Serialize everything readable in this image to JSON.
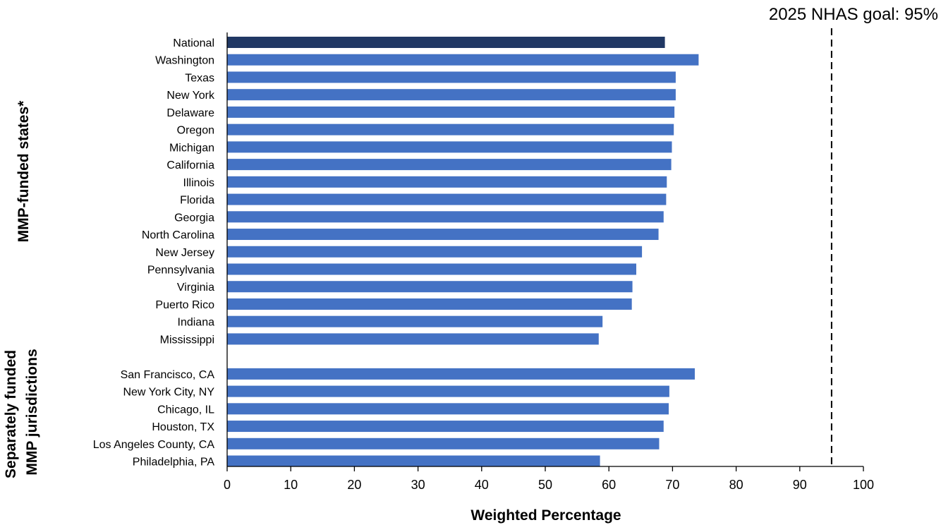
{
  "chart_data": {
    "type": "bar",
    "orientation": "horizontal",
    "xlabel": "Weighted Percentage",
    "xlim": [
      0,
      100
    ],
    "xticks": [
      0,
      10,
      20,
      30,
      40,
      50,
      60,
      70,
      80,
      90,
      100
    ],
    "grid": false,
    "colors": {
      "national": "#203864",
      "bar": "#4472C4",
      "axis": "#000000"
    },
    "reference_line": {
      "value": 95,
      "label": "2025 NHAS goal: 95%",
      "style": "dashed"
    },
    "groups": [
      {
        "title": "",
        "categories": [
          "National"
        ],
        "values": [
          68.8
        ],
        "highlight": true
      },
      {
        "title": "MMP-funded states*",
        "categories": [
          "Washington",
          "Texas",
          "New York",
          "Delaware",
          "Oregon",
          "Michigan",
          "California",
          "Illinois",
          "Florida",
          "Georgia",
          "North Carolina",
          "New Jersey",
          "Pennsylvania",
          "Virginia",
          "Puerto Rico",
          "Indiana",
          "Mississippi"
        ],
        "values": [
          74.1,
          70.5,
          70.5,
          70.3,
          70.2,
          69.9,
          69.8,
          69.1,
          69.0,
          68.6,
          67.8,
          65.2,
          64.3,
          63.7,
          63.6,
          59.0,
          58.4
        ]
      },
      {
        "title": "Separately funded MMP jurisdictions",
        "title_lines": [
          "Separately funded",
          "MMP jurisdictions"
        ],
        "categories": [
          "San Francisco, CA",
          "New York City, NY",
          "Chicago, IL",
          "Houston, TX",
          "Los Angeles County, CA",
          "Philadelphia, PA"
        ],
        "values": [
          73.5,
          69.5,
          69.4,
          68.6,
          67.9,
          58.6
        ]
      }
    ]
  }
}
